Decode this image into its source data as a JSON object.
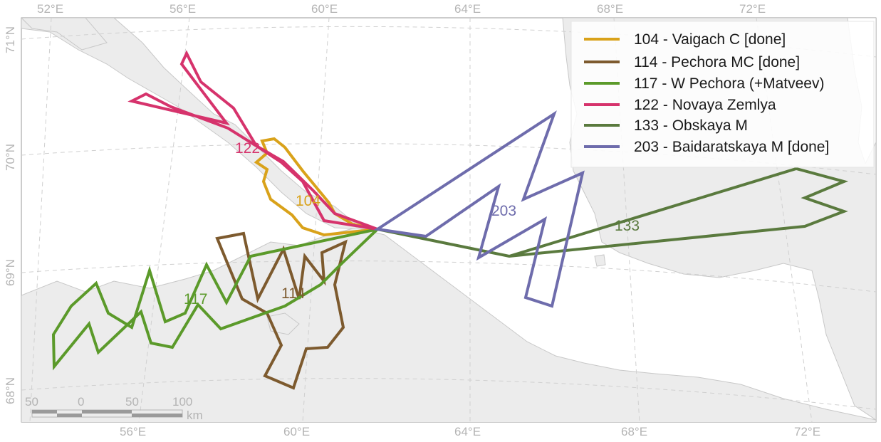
{
  "map": {
    "background_color": "#ffffff",
    "land_color": "#ececec",
    "coast_color": "#c8c8c8",
    "graticule_color": "#d0d0d0",
    "lon_labels_top": [
      "52°E",
      "56°E",
      "60°E",
      "64°E",
      "68°E",
      "72°E"
    ],
    "lon_labels_bottom": [
      "56°E",
      "60°E",
      "64°E",
      "68°E",
      "72°E"
    ],
    "lat_labels": [
      "71°N",
      "70°N",
      "69°N",
      "68°N"
    ]
  },
  "scale_bar": {
    "ticks": [
      "50",
      "0",
      "50",
      "100"
    ],
    "unit": "km"
  },
  "legend": {
    "items": [
      {
        "label": "104 - Vaigach C [done]",
        "color": "#d9a21a"
      },
      {
        "label": "114 - Pechora MC [done]",
        "color": "#7d5a2e"
      },
      {
        "label": "117 - W Pechora (+Matveev)",
        "color": "#5b9a2a"
      },
      {
        "label": "122 - Novaya Zemlya",
        "color": "#d6336c"
      },
      {
        "label": "133 - Obskaya M",
        "color": "#5a7a3e"
      },
      {
        "label": "203 - Baidaratskaya M [done]",
        "color": "#6e6cac"
      }
    ]
  },
  "tracks": [
    {
      "id": "104",
      "label": "104",
      "color": "#d9a21a"
    },
    {
      "id": "114",
      "label": "114",
      "color": "#7d5a2e"
    },
    {
      "id": "117",
      "label": "117",
      "color": "#5b9a2a"
    },
    {
      "id": "122",
      "label": "122",
      "color": "#d6336c"
    },
    {
      "id": "133",
      "label": "133",
      "color": "#5a7a3e"
    },
    {
      "id": "203",
      "label": "203",
      "color": "#6e6cac"
    }
  ]
}
